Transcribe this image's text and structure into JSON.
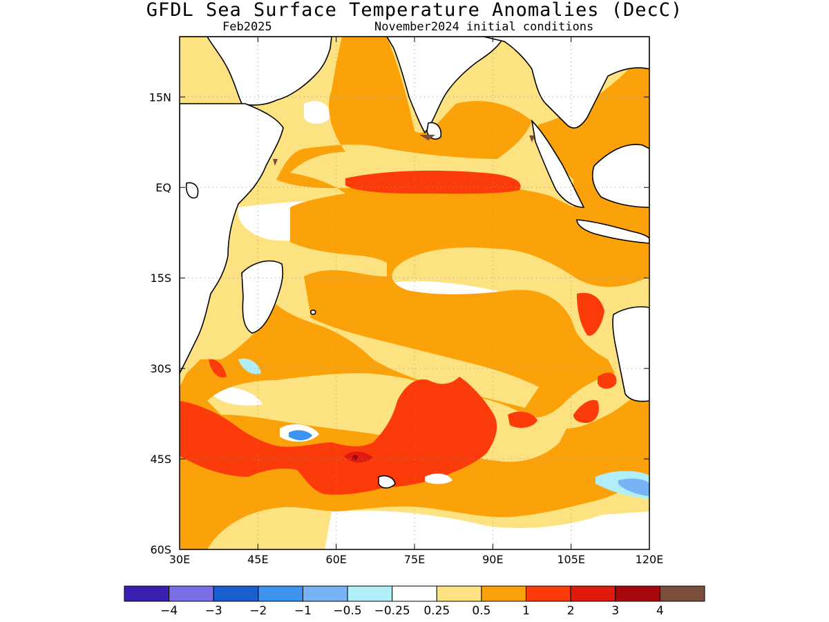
{
  "header": {
    "title": "GFDL Sea Surface Temperature Anomalies (DecC)",
    "left_subtitle": "Feb2025",
    "right_subtitle": "November2024 initial conditions"
  },
  "map": {
    "lon_range": [
      30,
      120
    ],
    "lat_range": [
      -60,
      25
    ],
    "grid": true,
    "lat_ticks": [
      "15N",
      "EQ",
      "15S",
      "30S",
      "45S",
      "60S"
    ],
    "lon_ticks": [
      "30E",
      "45E",
      "60E",
      "75E",
      "90E",
      "105E",
      "120E"
    ]
  },
  "colorbar": {
    "colors": [
      "#3a1fb0",
      "#7b6fe8",
      "#1a5fd0",
      "#3d94f0",
      "#78b4f5",
      "#b0eff8",
      "#ffffff",
      "#fde282",
      "#fba10a",
      "#fc3b0b",
      "#e01b0d",
      "#a8080c",
      "#7a4e3c"
    ],
    "labels": [
      "−4",
      "−3",
      "−2",
      "−1",
      "−0.5",
      "−0.25",
      "0.25",
      "0.5",
      "1",
      "2",
      "3",
      "4"
    ]
  }
}
